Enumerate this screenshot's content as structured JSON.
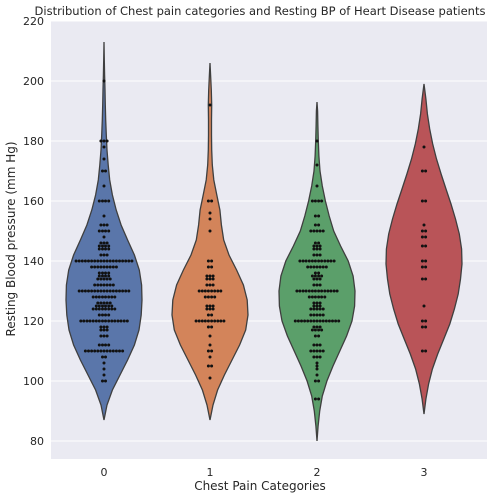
{
  "chart_data": {
    "type": "violin+swarm",
    "title": "Distribution of Chest pain categories and Resting BP of Heart Disease patients",
    "xlabel": "Chest Pain Categories",
    "ylabel": "Resting Blood pressure (mm Hg)",
    "categories": [
      "0",
      "1",
      "2",
      "3"
    ],
    "ylim": [
      74,
      220
    ],
    "yticks": [
      80,
      100,
      120,
      140,
      160,
      180,
      200,
      220
    ],
    "grid": true,
    "colors": [
      "#5a76aa",
      "#d3845a",
      "#5b9f6a",
      "#b95458"
    ],
    "background": "#eaeaf2",
    "violins": [
      {
        "category": "0",
        "range": [
          87,
          213
        ],
        "density": [
          [
            87,
            0.0
          ],
          [
            92,
            0.08
          ],
          [
            97,
            0.22
          ],
          [
            102,
            0.42
          ],
          [
            107,
            0.62
          ],
          [
            112,
            0.8
          ],
          [
            117,
            0.92
          ],
          [
            122,
            0.98
          ],
          [
            127,
            1.0
          ],
          [
            132,
            0.99
          ],
          [
            137,
            0.93
          ],
          [
            142,
            0.8
          ],
          [
            147,
            0.62
          ],
          [
            152,
            0.45
          ],
          [
            157,
            0.32
          ],
          [
            162,
            0.22
          ],
          [
            167,
            0.15
          ],
          [
            172,
            0.11
          ],
          [
            177,
            0.08
          ],
          [
            182,
            0.06
          ],
          [
            187,
            0.045
          ],
          [
            192,
            0.035
          ],
          [
            197,
            0.025
          ],
          [
            202,
            0.015
          ],
          [
            207,
            0.008
          ],
          [
            213,
            0.0
          ]
        ],
        "points": [
          {
            "y": 100,
            "n": 2
          },
          {
            "y": 102,
            "n": 1
          },
          {
            "y": 104,
            "n": 1
          },
          {
            "y": 106,
            "n": 1
          },
          {
            "y": 108,
            "n": 2
          },
          {
            "y": 110,
            "n": 13
          },
          {
            "y": 112,
            "n": 4
          },
          {
            "y": 115,
            "n": 3
          },
          {
            "y": 117,
            "n": 3
          },
          {
            "y": 118,
            "n": 3
          },
          {
            "y": 120,
            "n": 16
          },
          {
            "y": 122,
            "n": 4
          },
          {
            "y": 124,
            "n": 8
          },
          {
            "y": 125,
            "n": 6
          },
          {
            "y": 126,
            "n": 5
          },
          {
            "y": 128,
            "n": 8
          },
          {
            "y": 130,
            "n": 17
          },
          {
            "y": 132,
            "n": 7
          },
          {
            "y": 134,
            "n": 5
          },
          {
            "y": 135,
            "n": 4
          },
          {
            "y": 136,
            "n": 4
          },
          {
            "y": 138,
            "n": 9
          },
          {
            "y": 140,
            "n": 19
          },
          {
            "y": 142,
            "n": 3
          },
          {
            "y": 144,
            "n": 4
          },
          {
            "y": 145,
            "n": 4
          },
          {
            "y": 146,
            "n": 3
          },
          {
            "y": 148,
            "n": 1
          },
          {
            "y": 150,
            "n": 4
          },
          {
            "y": 152,
            "n": 3
          },
          {
            "y": 155,
            "n": 1
          },
          {
            "y": 160,
            "n": 4
          },
          {
            "y": 165,
            "n": 1
          },
          {
            "y": 170,
            "n": 2
          },
          {
            "y": 174,
            "n": 1
          },
          {
            "y": 178,
            "n": 1
          },
          {
            "y": 180,
            "n": 3
          },
          {
            "y": 200,
            "n": 1
          }
        ]
      },
      {
        "category": "1",
        "range": [
          87,
          206
        ],
        "density": [
          [
            87,
            0.0
          ],
          [
            92,
            0.08
          ],
          [
            97,
            0.2
          ],
          [
            102,
            0.38
          ],
          [
            107,
            0.58
          ],
          [
            112,
            0.78
          ],
          [
            117,
            0.94
          ],
          [
            122,
            1.0
          ],
          [
            127,
            0.98
          ],
          [
            132,
            0.88
          ],
          [
            137,
            0.7
          ],
          [
            142,
            0.5
          ],
          [
            147,
            0.36
          ],
          [
            152,
            0.3
          ],
          [
            157,
            0.26
          ],
          [
            162,
            0.18
          ],
          [
            167,
            0.1
          ],
          [
            172,
            0.06
          ],
          [
            177,
            0.045
          ],
          [
            182,
            0.04
          ],
          [
            187,
            0.04
          ],
          [
            192,
            0.045
          ],
          [
            197,
            0.035
          ],
          [
            202,
            0.015
          ],
          [
            206,
            0.0
          ]
        ],
        "points": [
          {
            "y": 101,
            "n": 1
          },
          {
            "y": 105,
            "n": 2
          },
          {
            "y": 108,
            "n": 1
          },
          {
            "y": 110,
            "n": 2
          },
          {
            "y": 112,
            "n": 1
          },
          {
            "y": 115,
            "n": 1
          },
          {
            "y": 118,
            "n": 2
          },
          {
            "y": 120,
            "n": 10
          },
          {
            "y": 122,
            "n": 2
          },
          {
            "y": 124,
            "n": 3
          },
          {
            "y": 125,
            "n": 3
          },
          {
            "y": 128,
            "n": 4
          },
          {
            "y": 130,
            "n": 8
          },
          {
            "y": 132,
            "n": 3
          },
          {
            "y": 134,
            "n": 3
          },
          {
            "y": 135,
            "n": 3
          },
          {
            "y": 138,
            "n": 2
          },
          {
            "y": 140,
            "n": 2
          },
          {
            "y": 150,
            "n": 1
          },
          {
            "y": 154,
            "n": 1
          },
          {
            "y": 156,
            "n": 1
          },
          {
            "y": 160,
            "n": 2
          },
          {
            "y": 192,
            "n": 1
          }
        ]
      },
      {
        "category": "2",
        "range": [
          80,
          193
        ],
        "density": [
          [
            80,
            0.0
          ],
          [
            85,
            0.03
          ],
          [
            90,
            0.07
          ],
          [
            95,
            0.14
          ],
          [
            100,
            0.26
          ],
          [
            105,
            0.42
          ],
          [
            110,
            0.6
          ],
          [
            115,
            0.78
          ],
          [
            120,
            0.92
          ],
          [
            125,
            0.99
          ],
          [
            130,
            1.0
          ],
          [
            135,
            0.95
          ],
          [
            140,
            0.82
          ],
          [
            145,
            0.62
          ],
          [
            150,
            0.44
          ],
          [
            155,
            0.32
          ],
          [
            160,
            0.22
          ],
          [
            165,
            0.14
          ],
          [
            170,
            0.08
          ],
          [
            175,
            0.05
          ],
          [
            180,
            0.035
          ],
          [
            185,
            0.025
          ],
          [
            190,
            0.015
          ],
          [
            193,
            0.0
          ]
        ],
        "points": [
          {
            "y": 94,
            "n": 2
          },
          {
            "y": 100,
            "n": 2
          },
          {
            "y": 102,
            "n": 1
          },
          {
            "y": 104,
            "n": 1
          },
          {
            "y": 105,
            "n": 1
          },
          {
            "y": 106,
            "n": 1
          },
          {
            "y": 108,
            "n": 3
          },
          {
            "y": 110,
            "n": 5
          },
          {
            "y": 112,
            "n": 3
          },
          {
            "y": 115,
            "n": 2
          },
          {
            "y": 117,
            "n": 4
          },
          {
            "y": 118,
            "n": 3
          },
          {
            "y": 120,
            "n": 15
          },
          {
            "y": 122,
            "n": 5
          },
          {
            "y": 124,
            "n": 5
          },
          {
            "y": 125,
            "n": 3
          },
          {
            "y": 126,
            "n": 3
          },
          {
            "y": 128,
            "n": 6
          },
          {
            "y": 130,
            "n": 14
          },
          {
            "y": 132,
            "n": 3
          },
          {
            "y": 134,
            "n": 3
          },
          {
            "y": 135,
            "n": 4
          },
          {
            "y": 136,
            "n": 2
          },
          {
            "y": 138,
            "n": 7
          },
          {
            "y": 140,
            "n": 12
          },
          {
            "y": 142,
            "n": 3
          },
          {
            "y": 144,
            "n": 3
          },
          {
            "y": 145,
            "n": 3
          },
          {
            "y": 146,
            "n": 2
          },
          {
            "y": 150,
            "n": 5
          },
          {
            "y": 152,
            "n": 2
          },
          {
            "y": 155,
            "n": 2
          },
          {
            "y": 160,
            "n": 4
          },
          {
            "y": 165,
            "n": 1
          },
          {
            "y": 172,
            "n": 1
          },
          {
            "y": 180,
            "n": 1
          }
        ]
      },
      {
        "category": "3",
        "range": [
          89,
          199
        ],
        "density": [
          [
            89,
            0.0
          ],
          [
            94,
            0.05
          ],
          [
            99,
            0.12
          ],
          [
            104,
            0.22
          ],
          [
            109,
            0.36
          ],
          [
            114,
            0.52
          ],
          [
            119,
            0.68
          ],
          [
            124,
            0.8
          ],
          [
            129,
            0.9
          ],
          [
            134,
            0.96
          ],
          [
            139,
            1.0
          ],
          [
            144,
            0.99
          ],
          [
            149,
            0.93
          ],
          [
            154,
            0.83
          ],
          [
            159,
            0.71
          ],
          [
            164,
            0.58
          ],
          [
            169,
            0.45
          ],
          [
            174,
            0.33
          ],
          [
            179,
            0.23
          ],
          [
            184,
            0.15
          ],
          [
            189,
            0.09
          ],
          [
            194,
            0.05
          ],
          [
            199,
            0.0
          ]
        ],
        "points": [
          {
            "y": 110,
            "n": 2
          },
          {
            "y": 118,
            "n": 2
          },
          {
            "y": 120,
            "n": 2
          },
          {
            "y": 125,
            "n": 1
          },
          {
            "y": 134,
            "n": 2
          },
          {
            "y": 138,
            "n": 2
          },
          {
            "y": 140,
            "n": 2
          },
          {
            "y": 145,
            "n": 2
          },
          {
            "y": 148,
            "n": 2
          },
          {
            "y": 150,
            "n": 2
          },
          {
            "y": 152,
            "n": 1
          },
          {
            "y": 160,
            "n": 2
          },
          {
            "y": 170,
            "n": 2
          },
          {
            "y": 178,
            "n": 1
          }
        ]
      }
    ]
  }
}
